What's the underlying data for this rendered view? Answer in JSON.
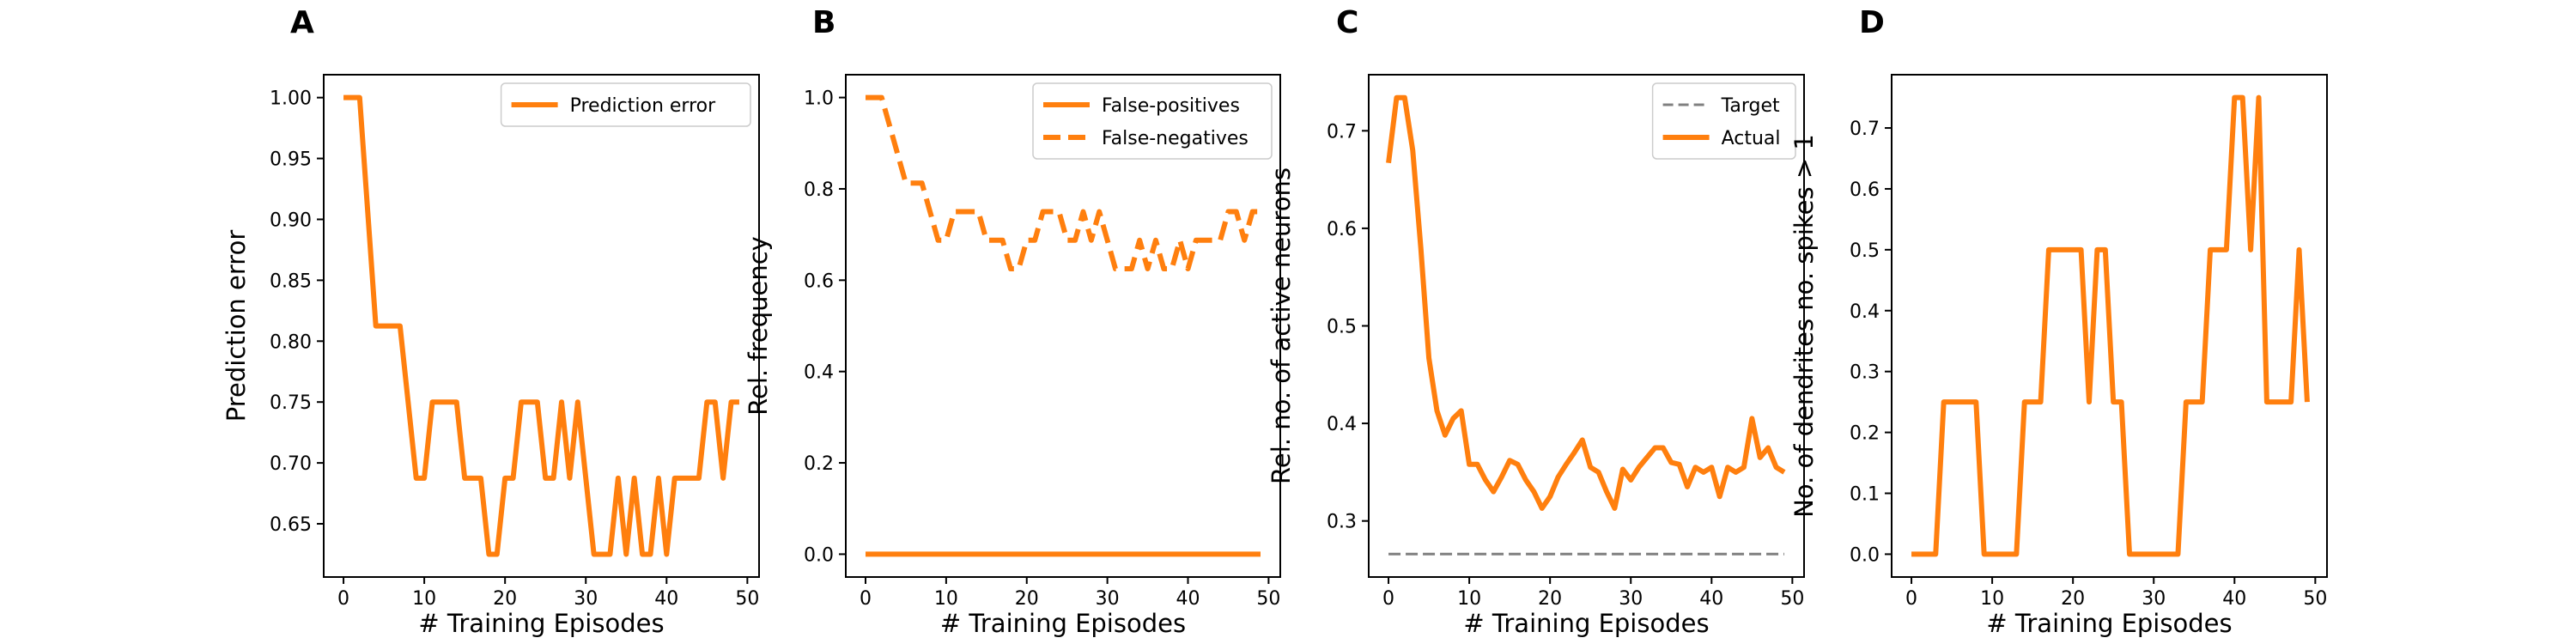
{
  "figure": {
    "panels": [
      {
        "letter": "A",
        "xlabel": "# Training Episodes",
        "ylabel": "Prediction error"
      },
      {
        "letter": "B",
        "xlabel": "# Training Episodes",
        "ylabel": "Rel. frequency"
      },
      {
        "letter": "C",
        "xlabel": "# Training Episodes",
        "ylabel": "Rel. no. of active neurons"
      },
      {
        "letter": "D",
        "xlabel": "# Training Episodes",
        "ylabel": "No. of dendrites no. spikes > 1"
      }
    ]
  },
  "chart_data": [
    {
      "type": "line",
      "panel": "A",
      "xlabel": "# Training Episodes",
      "ylabel": "Prediction error",
      "xlim": [
        -2.45,
        51.45
      ],
      "ylim": [
        0.6063,
        1.0188
      ],
      "xticks": [
        0,
        10,
        20,
        30,
        40,
        50
      ],
      "yticks": [
        0.65,
        0.7,
        0.75,
        0.8,
        0.85,
        0.9,
        0.95,
        1.0
      ],
      "yticklabels": [
        "0.65",
        "0.70",
        "0.75",
        "0.80",
        "0.85",
        "0.90",
        "0.95",
        "1.00"
      ],
      "legend_position": "upper right",
      "grid": false,
      "series": [
        {
          "name": "Prediction error",
          "color": "#ff7f0e",
          "linestyle": "solid",
          "x": [
            0,
            1,
            2,
            3,
            4,
            5,
            6,
            7,
            8,
            9,
            10,
            11,
            12,
            13,
            14,
            15,
            16,
            17,
            18,
            19,
            20,
            21,
            22,
            23,
            24,
            25,
            26,
            27,
            28,
            29,
            30,
            31,
            32,
            33,
            34,
            35,
            36,
            37,
            38,
            39,
            40,
            41,
            42,
            43,
            44,
            45,
            46,
            47,
            48,
            49
          ],
          "y": [
            1.0,
            1.0,
            1.0,
            0.9063,
            0.8125,
            0.8125,
            0.8125,
            0.8125,
            0.75,
            0.6875,
            0.6875,
            0.75,
            0.75,
            0.75,
            0.75,
            0.6875,
            0.6875,
            0.6875,
            0.625,
            0.625,
            0.6875,
            0.6875,
            0.75,
            0.75,
            0.75,
            0.6875,
            0.6875,
            0.75,
            0.6875,
            0.75,
            0.6875,
            0.625,
            0.625,
            0.625,
            0.6875,
            0.625,
            0.6875,
            0.625,
            0.625,
            0.6875,
            0.625,
            0.6875,
            0.6875,
            0.6875,
            0.6875,
            0.75,
            0.75,
            0.6875,
            0.75,
            0.75
          ]
        }
      ]
    },
    {
      "type": "line",
      "panel": "B",
      "xlabel": "# Training Episodes",
      "ylabel": "Rel. frequency",
      "xlim": [
        -2.45,
        51.45
      ],
      "ylim": [
        -0.05,
        1.05
      ],
      "xticks": [
        0,
        10,
        20,
        30,
        40,
        50
      ],
      "yticks": [
        0.0,
        0.2,
        0.4,
        0.6,
        0.8,
        1.0
      ],
      "yticklabels": [
        "0.0",
        "0.2",
        "0.4",
        "0.6",
        "0.8",
        "1.0"
      ],
      "legend_position": "upper right",
      "grid": false,
      "series": [
        {
          "name": "False-positives",
          "color": "#ff7f0e",
          "linestyle": "solid",
          "x": [
            0,
            1,
            2,
            3,
            4,
            5,
            6,
            7,
            8,
            9,
            10,
            11,
            12,
            13,
            14,
            15,
            16,
            17,
            18,
            19,
            20,
            21,
            22,
            23,
            24,
            25,
            26,
            27,
            28,
            29,
            30,
            31,
            32,
            33,
            34,
            35,
            36,
            37,
            38,
            39,
            40,
            41,
            42,
            43,
            44,
            45,
            46,
            47,
            48,
            49
          ],
          "y": [
            0,
            0,
            0,
            0,
            0,
            0,
            0,
            0,
            0,
            0,
            0,
            0,
            0,
            0,
            0,
            0,
            0,
            0,
            0,
            0,
            0,
            0,
            0,
            0,
            0,
            0,
            0,
            0,
            0,
            0,
            0,
            0,
            0,
            0,
            0,
            0,
            0,
            0,
            0,
            0,
            0,
            0,
            0,
            0,
            0,
            0,
            0,
            0,
            0,
            0
          ]
        },
        {
          "name": "False-negatives",
          "color": "#ff7f0e",
          "linestyle": "dashed",
          "x": [
            0,
            1,
            2,
            3,
            4,
            5,
            6,
            7,
            8,
            9,
            10,
            11,
            12,
            13,
            14,
            15,
            16,
            17,
            18,
            19,
            20,
            21,
            22,
            23,
            24,
            25,
            26,
            27,
            28,
            29,
            30,
            31,
            32,
            33,
            34,
            35,
            36,
            37,
            38,
            39,
            40,
            41,
            42,
            43,
            44,
            45,
            46,
            47,
            48,
            49
          ],
          "y": [
            1.0,
            1.0,
            1.0,
            0.9375,
            0.875,
            0.8125,
            0.8125,
            0.8125,
            0.75,
            0.6875,
            0.6875,
            0.75,
            0.75,
            0.75,
            0.75,
            0.6875,
            0.6875,
            0.6875,
            0.625,
            0.625,
            0.6875,
            0.6875,
            0.75,
            0.75,
            0.75,
            0.6875,
            0.6875,
            0.75,
            0.6875,
            0.75,
            0.6875,
            0.625,
            0.625,
            0.625,
            0.6875,
            0.625,
            0.6875,
            0.625,
            0.625,
            0.6875,
            0.625,
            0.6875,
            0.6875,
            0.6875,
            0.6875,
            0.75,
            0.75,
            0.6875,
            0.75,
            0.75
          ]
        }
      ]
    },
    {
      "type": "line",
      "panel": "C",
      "xlabel": "# Training Episodes",
      "ylabel": "Rel. no. of active neurons",
      "xlim": [
        -2.45,
        51.45
      ],
      "ylim": [
        0.2425,
        0.7575
      ],
      "xticks": [
        0,
        10,
        20,
        30,
        40,
        50
      ],
      "yticks": [
        0.3,
        0.4,
        0.5,
        0.6,
        0.7
      ],
      "yticklabels": [
        "0.3",
        "0.4",
        "0.5",
        "0.6",
        "0.7"
      ],
      "legend_position": "upper right",
      "grid": false,
      "series": [
        {
          "name": "Target",
          "color": "#808080",
          "linestyle": "dashed",
          "x": [
            0,
            49
          ],
          "y": [
            0.266,
            0.266
          ]
        },
        {
          "name": "Actual",
          "color": "#ff7f0e",
          "linestyle": "solid",
          "x": [
            0,
            1,
            2,
            3,
            4,
            5,
            6,
            7,
            8,
            9,
            10,
            11,
            12,
            13,
            14,
            15,
            16,
            17,
            18,
            19,
            20,
            21,
            22,
            23,
            24,
            25,
            26,
            27,
            28,
            29,
            30,
            31,
            32,
            33,
            34,
            35,
            36,
            37,
            38,
            39,
            40,
            41,
            42,
            43,
            44,
            45,
            46,
            47,
            48,
            49
          ],
          "y": [
            0.667,
            0.734,
            0.734,
            0.68,
            0.58,
            0.467,
            0.413,
            0.388,
            0.405,
            0.413,
            0.358,
            0.358,
            0.342,
            0.33,
            0.345,
            0.362,
            0.358,
            0.342,
            0.33,
            0.313,
            0.325,
            0.345,
            0.358,
            0.37,
            0.383,
            0.355,
            0.35,
            0.33,
            0.313,
            0.353,
            0.342,
            0.355,
            0.365,
            0.375,
            0.375,
            0.36,
            0.358,
            0.335,
            0.355,
            0.35,
            0.355,
            0.325,
            0.355,
            0.35,
            0.355,
            0.405,
            0.365,
            0.375,
            0.355,
            0.35
          ]
        }
      ]
    },
    {
      "type": "line",
      "panel": "D",
      "xlabel": "# Training Episodes",
      "ylabel": "No. of dendrites no. spikes > 1",
      "xlim": [
        -2.45,
        51.45
      ],
      "ylim": [
        -0.0375,
        0.7875
      ],
      "xticks": [
        0,
        10,
        20,
        30,
        40,
        50
      ],
      "yticks": [
        0.0,
        0.1,
        0.2,
        0.3,
        0.4,
        0.5,
        0.6,
        0.7
      ],
      "yticklabels": [
        "0.0",
        "0.1",
        "0.2",
        "0.3",
        "0.4",
        "0.5",
        "0.6",
        "0.7"
      ],
      "grid": false,
      "series": [
        {
          "color": "#ff7f0e",
          "linestyle": "solid",
          "x": [
            0,
            1,
            2,
            3,
            4,
            5,
            6,
            7,
            8,
            9,
            10,
            11,
            12,
            13,
            14,
            15,
            16,
            17,
            18,
            19,
            20,
            21,
            22,
            23,
            24,
            25,
            26,
            27,
            28,
            29,
            30,
            31,
            32,
            33,
            34,
            35,
            36,
            37,
            38,
            39,
            40,
            41,
            42,
            43,
            44,
            45,
            46,
            47,
            48,
            49
          ],
          "y": [
            0,
            0,
            0,
            0,
            0.25,
            0.25,
            0.25,
            0.25,
            0.25,
            0,
            0,
            0,
            0,
            0,
            0.25,
            0.25,
            0.25,
            0.5,
            0.5,
            0.5,
            0.5,
            0.5,
            0.25,
            0.5,
            0.5,
            0.25,
            0.25,
            0,
            0,
            0,
            0,
            0,
            0,
            0,
            0.25,
            0.25,
            0.25,
            0.5,
            0.5,
            0.5,
            0.75,
            0.75,
            0.5,
            0.75,
            0.25,
            0.25,
            0.25,
            0.25,
            0.5,
            0.25
          ]
        }
      ]
    }
  ]
}
